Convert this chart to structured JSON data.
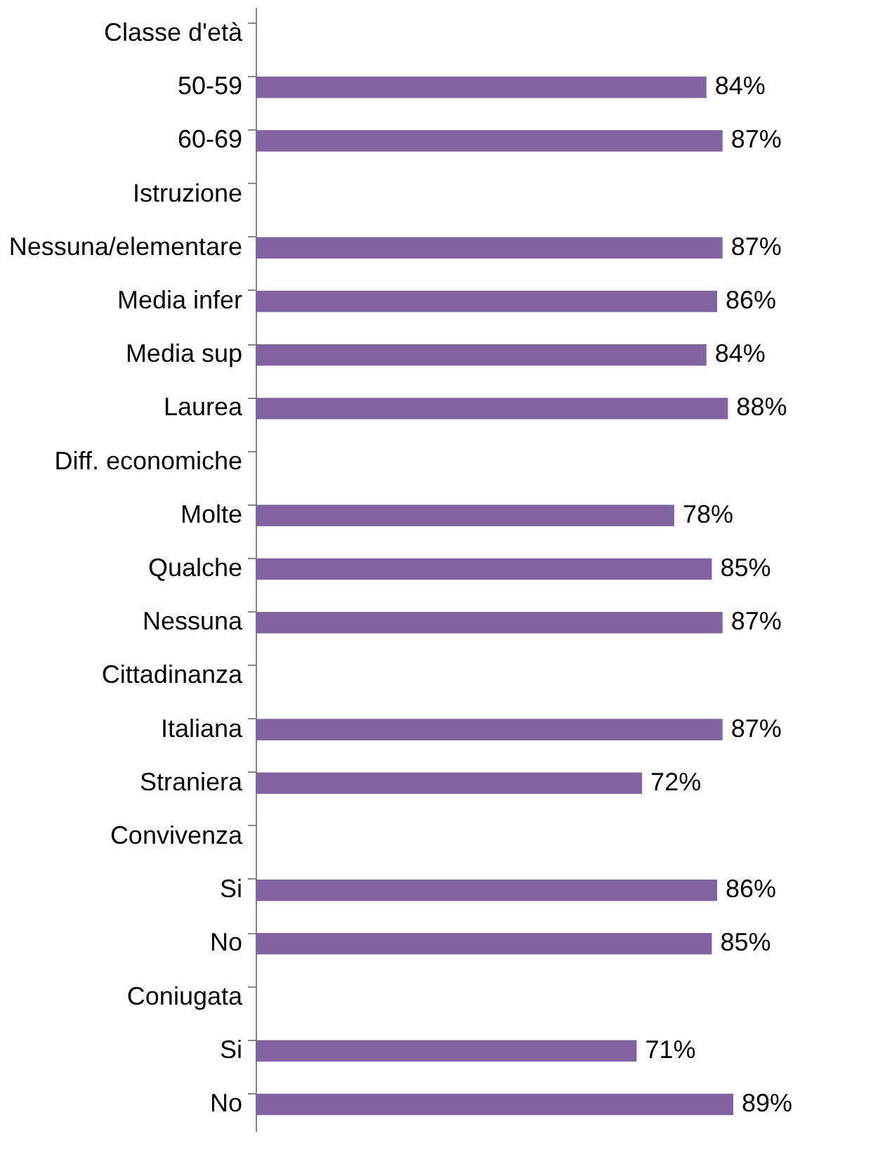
{
  "chart_data": {
    "type": "bar",
    "orientation": "horizontal",
    "color": "#8064a2",
    "categories": [
      "Classe d'età",
      "50-59",
      "60-69",
      "Istruzione",
      "Nessuna/elementare",
      "Media infer",
      "Media sup",
      "Laurea",
      "Diff. economiche",
      "Molte",
      "Qualche",
      "Nessuna",
      "Cittadinanza",
      "Italiana",
      "Straniera",
      "Convivenza",
      "Si",
      "No",
      "Coniugata",
      "Si",
      "No"
    ],
    "values": [
      null,
      84,
      87,
      null,
      87,
      86,
      84,
      88,
      null,
      78,
      85,
      87,
      null,
      87,
      72,
      null,
      86,
      85,
      null,
      71,
      89
    ],
    "value_labels": [
      null,
      "84%",
      "87%",
      null,
      "87%",
      "86%",
      "84%",
      "88%",
      null,
      "78%",
      "85%",
      "87%",
      null,
      "87%",
      "72%",
      null,
      "86%",
      "85%",
      null,
      "71%",
      "89%"
    ],
    "tick_labels": "y"
  }
}
